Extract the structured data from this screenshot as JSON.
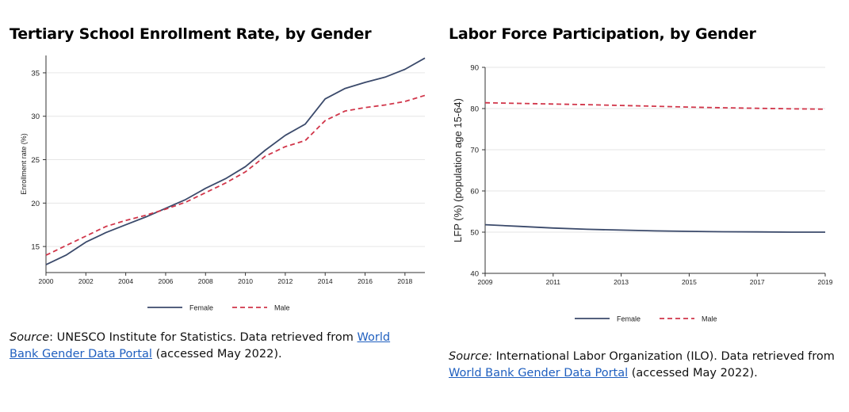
{
  "colors": {
    "female": "#3b4a6b",
    "male": "#d1364a",
    "grid": "#e6e6e6",
    "axis": "#333333"
  },
  "chart_data": [
    {
      "type": "line",
      "title": "Tertiary School Enrollment Rate, by Gender",
      "xlabel": "",
      "ylabel": "Enrollment rate (%)",
      "xlim": [
        2000,
        2019
      ],
      "ylim": [
        12,
        37
      ],
      "xticks": [
        "2000",
        "2002",
        "2004",
        "2006",
        "2008",
        "2010",
        "2012",
        "2014",
        "2016",
        "2018"
      ],
      "yticks": [
        "15",
        "20",
        "25",
        "30",
        "35"
      ],
      "grid": true,
      "legend": "bottom",
      "x": [
        2000,
        2001,
        2002,
        2003,
        2004,
        2005,
        2006,
        2007,
        2008,
        2009,
        2010,
        2011,
        2012,
        2013,
        2014,
        2015,
        2016,
        2017,
        2018,
        2019
      ],
      "series": [
        {
          "name": "Female",
          "style": "solid",
          "values": [
            12.9,
            14.0,
            15.5,
            16.6,
            17.5,
            18.4,
            19.4,
            20.4,
            21.7,
            22.8,
            24.2,
            26.1,
            27.8,
            29.1,
            32.0,
            33.2,
            33.9,
            34.5,
            35.4,
            36.7
          ]
        },
        {
          "name": "Male",
          "style": "dashed",
          "values": [
            14.0,
            15.1,
            16.2,
            17.3,
            18.0,
            18.6,
            19.3,
            20.1,
            21.2,
            22.3,
            23.6,
            25.4,
            26.5,
            27.2,
            29.5,
            30.6,
            31.0,
            31.3,
            31.7,
            32.4
          ]
        }
      ]
    },
    {
      "type": "line",
      "title": "Labor Force Participation, by Gender",
      "xlabel": "",
      "ylabel": "LFP (%) (population age 15-64)",
      "xlim": [
        2009,
        2019
      ],
      "ylim": [
        40,
        90
      ],
      "xticks": [
        "2009",
        "2011",
        "2013",
        "2015",
        "2017",
        "2019"
      ],
      "yticks": [
        "40",
        "50",
        "60",
        "70",
        "80",
        "90"
      ],
      "grid": true,
      "legend": "bottom",
      "x": [
        2009,
        2010,
        2011,
        2012,
        2013,
        2014,
        2015,
        2016,
        2017,
        2018,
        2019
      ],
      "series": [
        {
          "name": "Female",
          "style": "solid",
          "values": [
            51.8,
            51.4,
            51.0,
            50.7,
            50.5,
            50.3,
            50.2,
            50.1,
            50.05,
            50.0,
            50.0
          ]
        },
        {
          "name": "Male",
          "style": "dashed",
          "values": [
            81.4,
            81.25,
            81.1,
            80.95,
            80.75,
            80.55,
            80.35,
            80.2,
            80.05,
            79.95,
            79.85
          ]
        }
      ]
    }
  ],
  "sources": [
    {
      "label": "Source",
      "text_before": ": UNESCO Institute for Statistics. Data retrieved from ",
      "link": "World Bank Gender Data Portal",
      "text_after": " (accessed May 2022)."
    },
    {
      "label": "Source:",
      "text_before": "  International Labor Organization (ILO).  Data retrieved from ",
      "link": "World Bank Gender Data Portal",
      "text_after": " (accessed May 2022)."
    }
  ]
}
